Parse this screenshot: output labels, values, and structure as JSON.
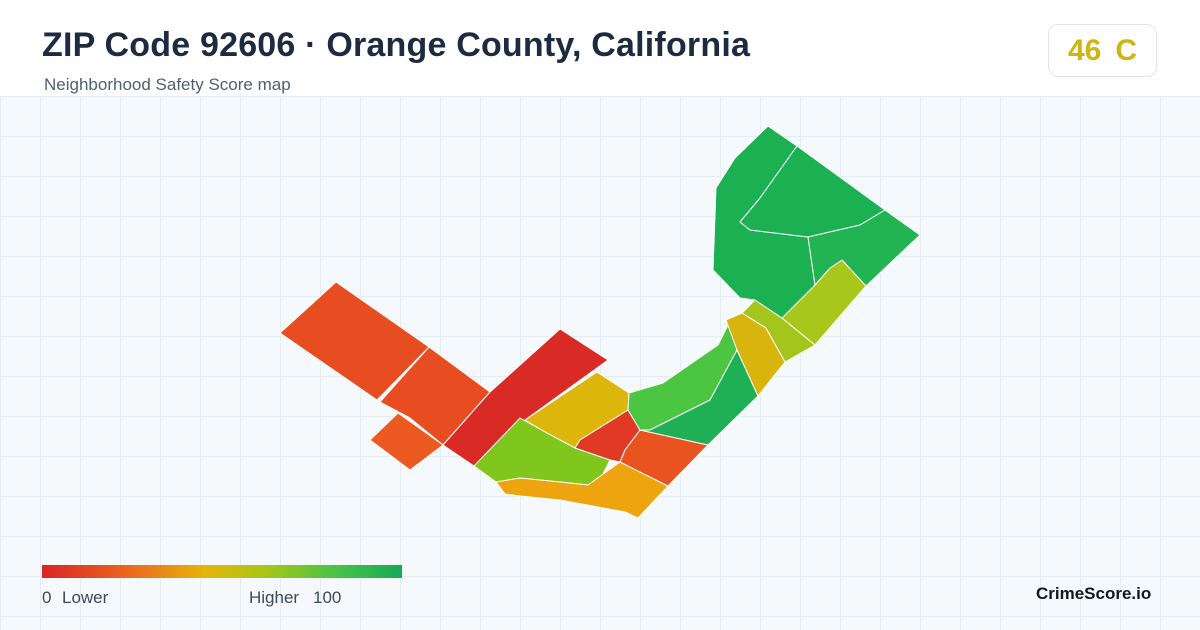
{
  "header": {
    "title": "ZIP Code 92606 · Orange County, California",
    "subtitle": "Neighborhood Safety Score map"
  },
  "score_badge": {
    "score": "46",
    "grade": "C",
    "color": "#cdb612"
  },
  "legend": {
    "min_value": "0",
    "min_label": "Lower",
    "max_label": "Higher",
    "max_value": "100",
    "colors": [
      "#d92525",
      "#eb6a1e",
      "#e6b40c",
      "#a8c617",
      "#46c446",
      "#17a957"
    ]
  },
  "brand": "CrimeScore.io",
  "map": {
    "regions": [
      {
        "id": "west-top",
        "color": "#e84d22"
      },
      {
        "id": "west-mid",
        "color": "#e84d22"
      },
      {
        "id": "west-small",
        "color": "#ec5a22"
      },
      {
        "id": "center-diagonal",
        "color": "#d92a26"
      },
      {
        "id": "center-yellow",
        "color": "#ddb60c"
      },
      {
        "id": "south-green",
        "color": "#7fc61d"
      },
      {
        "id": "south-orange",
        "color": "#eea40e"
      },
      {
        "id": "center-red",
        "color": "#e03a25"
      },
      {
        "id": "southeast-orange",
        "color": "#e9531f"
      },
      {
        "id": "center-green",
        "color": "#4cc542"
      },
      {
        "id": "east-green",
        "color": "#1faf55"
      },
      {
        "id": "east-yellow",
        "color": "#d8b50c"
      },
      {
        "id": "east-lime",
        "color": "#a4c51b"
      },
      {
        "id": "north-lime",
        "color": "#a8c71a"
      },
      {
        "id": "north-green-a",
        "color": "#1bb052"
      },
      {
        "id": "north-green-b",
        "color": "#1bb052"
      },
      {
        "id": "north-green-c",
        "color": "#22b453"
      }
    ]
  }
}
